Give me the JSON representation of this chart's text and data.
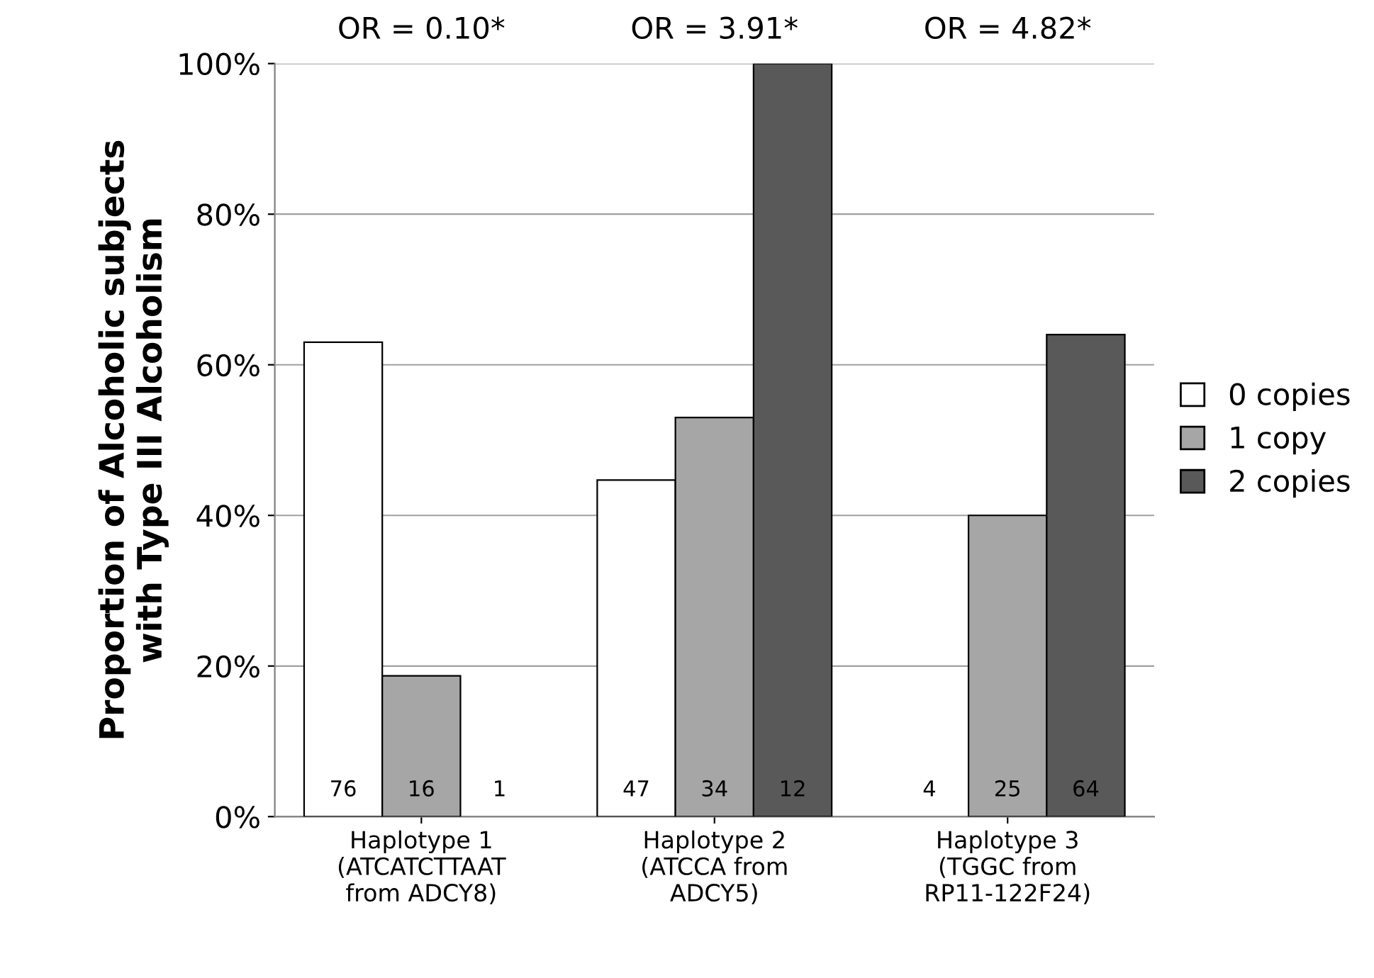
{
  "chart_data": {
    "type": "bar",
    "ylabel": "Proportion of Alcoholic subjects\nwith Type III Alcoholism",
    "categories": [
      "Haplotype 1\n(ATCATCTTAAT\nfrom ADCY8)",
      "Haplotype 2\n(ATCCA from\nADCY5)",
      "Haplotype 3\n(TGGC from\nRP11-122F24)"
    ],
    "series": [
      {
        "name": "0 copies",
        "color": "#ffffff",
        "values": [
          63,
          44.7,
          0
        ]
      },
      {
        "name": "1 copy",
        "color": "#a6a6a6",
        "values": [
          18.7,
          53,
          40
        ]
      },
      {
        "name": "2 copies",
        "color": "#595959",
        "values": [
          0,
          100,
          64
        ]
      }
    ],
    "annotations": [
      "OR = 0.10*",
      "OR = 3.91*",
      "OR = 4.82*",
      "76",
      "16",
      "1",
      "47",
      "34",
      "12",
      "4",
      "25",
      "64"
    ],
    "ylim": [
      0,
      100
    ],
    "yticks": [
      {
        "value": 0,
        "label": "0%"
      },
      {
        "value": 20,
        "label": "20%"
      },
      {
        "value": 40,
        "label": "40%"
      },
      {
        "value": 60,
        "label": "60%"
      },
      {
        "value": 80,
        "label": "80%"
      },
      {
        "value": 100,
        "label": "100%"
      }
    ],
    "grid": "y",
    "legend": "right"
  }
}
